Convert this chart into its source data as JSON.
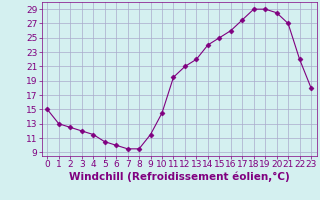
{
  "x": [
    0,
    1,
    2,
    3,
    4,
    5,
    6,
    7,
    8,
    9,
    10,
    11,
    12,
    13,
    14,
    15,
    16,
    17,
    18,
    19,
    20,
    21,
    22,
    23
  ],
  "y": [
    15,
    13,
    12.5,
    12,
    11.5,
    10.5,
    10,
    9.5,
    9.5,
    11.5,
    14.5,
    19.5,
    21,
    22,
    24,
    25,
    26,
    27.5,
    29,
    29,
    28.5,
    27,
    22,
    18
  ],
  "line_color": "#800080",
  "marker": "D",
  "marker_size": 2.5,
  "bg_color": "#d4f0f0",
  "grid_color": "#aaaacc",
  "xlabel": "Windchill (Refroidissement éolien,°C)",
  "xlim": [
    -0.5,
    23.5
  ],
  "ylim": [
    8.5,
    30
  ],
  "yticks": [
    9,
    11,
    13,
    15,
    17,
    19,
    21,
    23,
    25,
    27,
    29
  ],
  "xticks": [
    0,
    1,
    2,
    3,
    4,
    5,
    6,
    7,
    8,
    9,
    10,
    11,
    12,
    13,
    14,
    15,
    16,
    17,
    18,
    19,
    20,
    21,
    22,
    23
  ],
  "tick_color": "#800080",
  "label_color": "#800080",
  "font_size": 6.5,
  "xlabel_fontsize": 7.5
}
